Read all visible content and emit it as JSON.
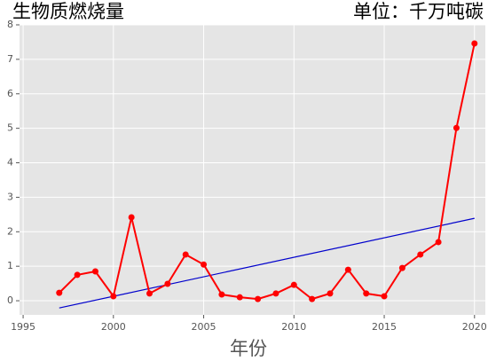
{
  "chart_data": {
    "type": "line",
    "title": "生物质燃烧量",
    "subtitle": "单位：千万吨碳",
    "x_label": "年份",
    "x": [
      1997,
      1998,
      1999,
      2000,
      2001,
      2002,
      2003,
      2004,
      2005,
      2006,
      2007,
      2008,
      2009,
      2010,
      2011,
      2012,
      2013,
      2014,
      2015,
      2016,
      2017,
      2018,
      2019,
      2020
    ],
    "values": [
      0.23,
      0.75,
      0.85,
      0.13,
      2.42,
      0.21,
      0.49,
      1.34,
      1.05,
      0.18,
      0.1,
      0.05,
      0.21,
      0.46,
      0.05,
      0.21,
      0.9,
      0.21,
      0.13,
      0.95,
      1.34,
      1.7,
      5.01,
      7.46
    ],
    "color": "#ff0000",
    "trend": {
      "x": [
        1997,
        2020
      ],
      "values": [
        -0.21,
        2.39
      ],
      "color": "#0000cc"
    },
    "xlim": [
      1994.8,
      2020.6
    ],
    "xticks": [
      1995,
      2000,
      2005,
      2010,
      2015,
      2020
    ],
    "ylim": [
      -0.41,
      8
    ],
    "yticks": [
      0,
      1,
      2,
      3,
      4,
      5,
      6,
      7,
      8
    ],
    "grid": true
  }
}
